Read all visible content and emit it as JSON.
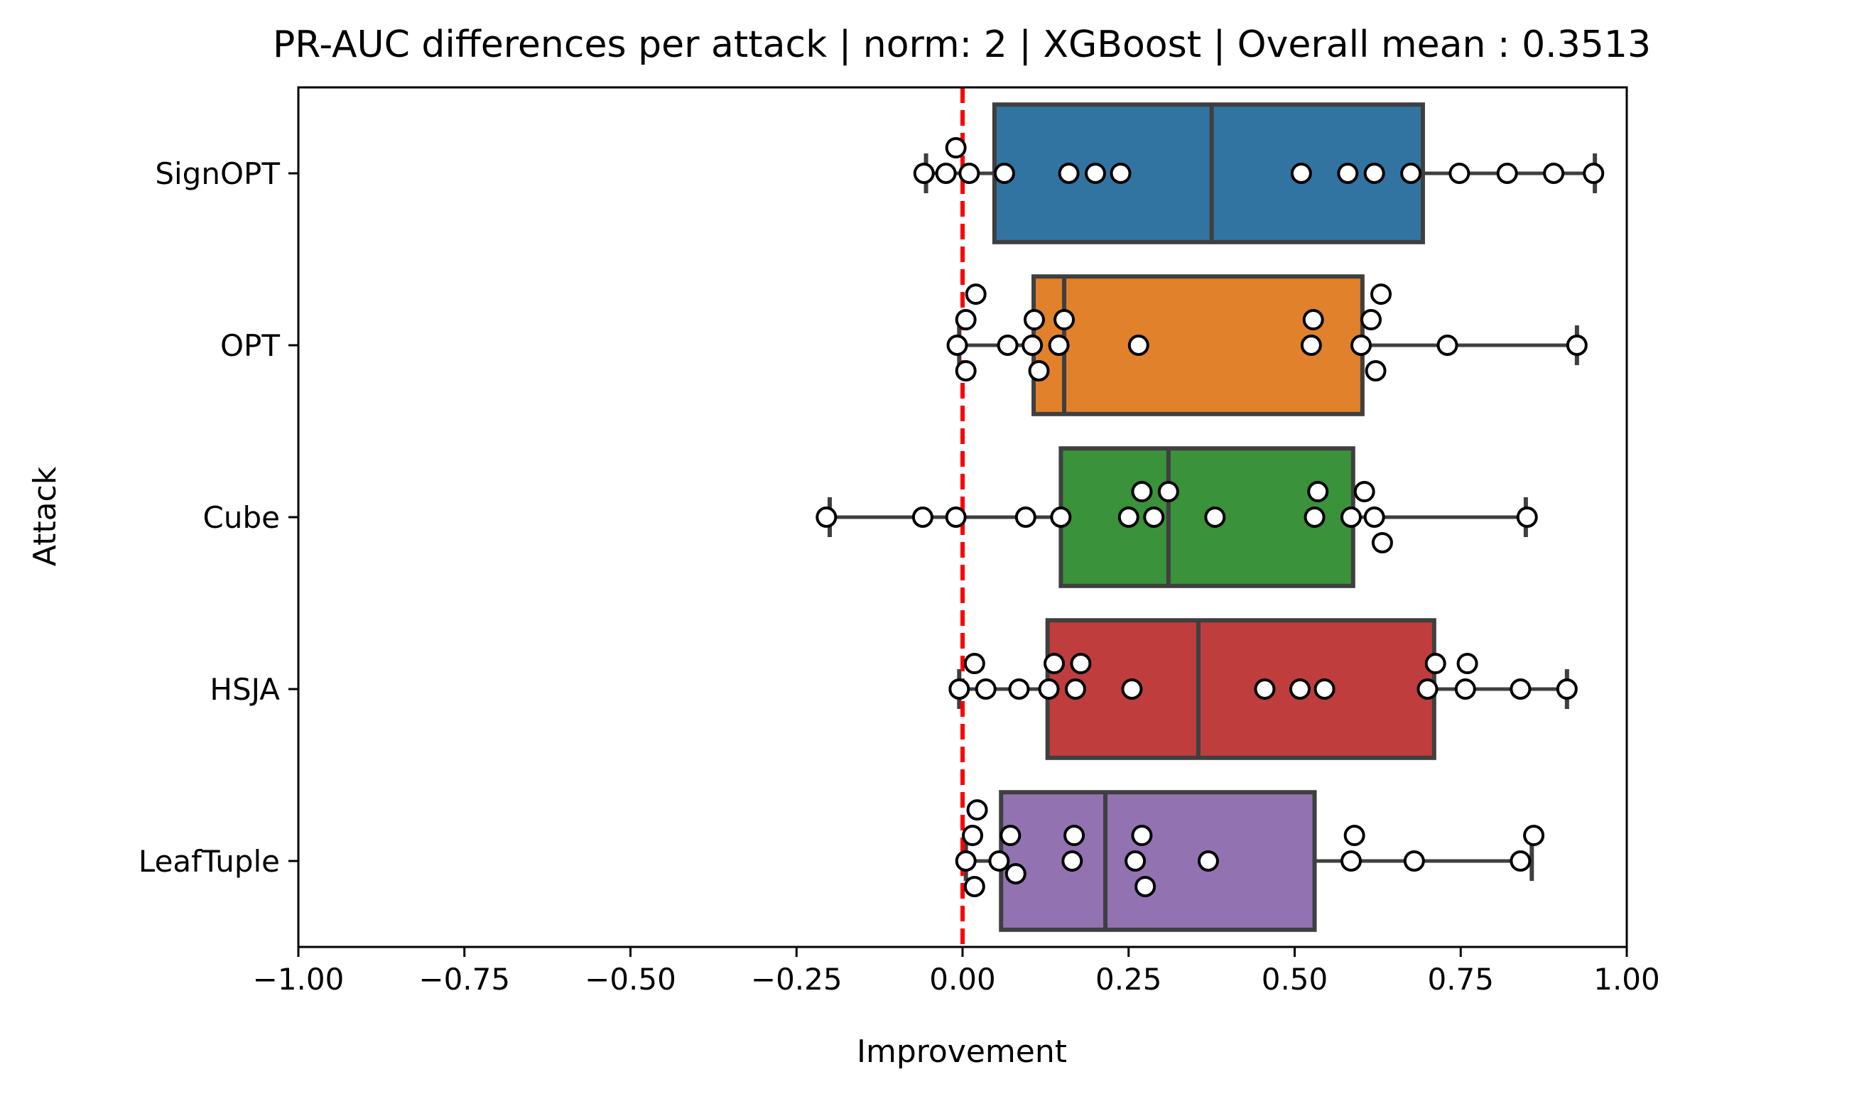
{
  "chart_data": {
    "type": "box",
    "orientation": "horizontal",
    "title": "PR-AUC differences per attack | norm: 2 | XGBoost | Overall mean : 0.3513",
    "xlabel": "Improvement",
    "ylabel": "Attack",
    "xlim": [
      -1.0,
      1.0
    ],
    "xticks": [
      -1.0,
      -0.75,
      -0.5,
      -0.25,
      0.0,
      0.25,
      0.5,
      0.75,
      1.0
    ],
    "xtick_labels": [
      "−1.00",
      "−0.75",
      "−0.50",
      "−0.25",
      "0.00",
      "0.25",
      "0.50",
      "0.75",
      "1.00"
    ],
    "reference_line": {
      "x": 0.0,
      "color": "#ff0000",
      "style": "dashed"
    },
    "grid": false,
    "categories": [
      "SignOPT",
      "OPT",
      "Cube",
      "HSJA",
      "LeafTuple"
    ],
    "colors": [
      "#3274a1",
      "#e1812c",
      "#3a923a",
      "#c03d3e",
      "#9372b2"
    ],
    "boxes": [
      {
        "whisker_low": -0.055,
        "q1": 0.048,
        "median": 0.375,
        "q3": 0.693,
        "whisker_high": 0.952
      },
      {
        "whisker_low": -0.005,
        "q1": 0.107,
        "median": 0.153,
        "q3": 0.602,
        "whisker_high": 0.925
      },
      {
        "whisker_low": -0.2,
        "q1": 0.148,
        "median": 0.31,
        "q3": 0.588,
        "whisker_high": 0.848
      },
      {
        "whisker_low": -0.005,
        "q1": 0.128,
        "median": 0.355,
        "q3": 0.71,
        "whisker_high": 0.91
      },
      {
        "whisker_low": 0.005,
        "q1": 0.058,
        "median": 0.215,
        "q3": 0.53,
        "whisker_high": 0.857
      }
    ],
    "points": [
      [
        -0.058,
        -0.025,
        -0.01,
        0.01,
        0.063,
        0.16,
        0.2,
        0.238,
        0.51,
        0.58,
        0.62,
        0.675,
        0.748,
        0.82,
        0.89,
        0.95
      ],
      [
        -0.008,
        0.005,
        0.005,
        0.02,
        0.068,
        0.105,
        0.108,
        0.115,
        0.145,
        0.153,
        0.265,
        0.525,
        0.528,
        0.6,
        0.615,
        0.622,
        0.63,
        0.73,
        0.925
      ],
      [
        -0.205,
        -0.06,
        -0.01,
        0.095,
        0.148,
        0.25,
        0.27,
        0.288,
        0.31,
        0.38,
        0.53,
        0.535,
        0.585,
        0.605,
        0.62,
        0.632,
        0.85
      ],
      [
        -0.005,
        0.018,
        0.035,
        0.085,
        0.13,
        0.138,
        0.17,
        0.178,
        0.255,
        0.455,
        0.508,
        0.545,
        0.7,
        0.712,
        0.757,
        0.76,
        0.84,
        0.91
      ],
      [
        0.005,
        0.015,
        0.018,
        0.022,
        0.055,
        0.072,
        0.08,
        0.165,
        0.168,
        0.26,
        0.27,
        0.275,
        0.37,
        0.585,
        0.59,
        0.68,
        0.84,
        0.86
      ]
    ]
  }
}
